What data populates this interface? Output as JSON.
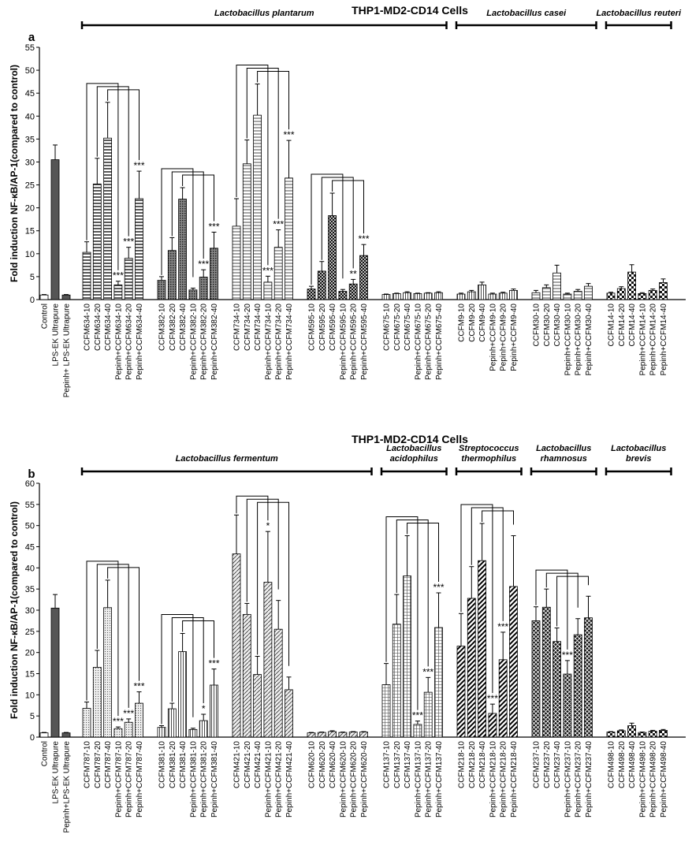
{
  "chart_data": [
    {
      "type": "bar",
      "title": "THP1-MD2-CD14 Cells",
      "panel": "a",
      "ylabel": "Fold induction NF-κB/AP-1(compared to control)",
      "ylim": [
        0,
        55
      ],
      "yticks": [
        0,
        5,
        10,
        15,
        20,
        25,
        30,
        35,
        40,
        45,
        50,
        55
      ],
      "groups": [
        {
          "sets": [
            {
              "pattern": "plain",
              "fills": [
                "#ffffff",
                "#555555",
                "#555555"
              ],
              "categories": [
                "Control",
                "LPS-EK Ultrapure",
                "Pepinh+ LPS-EK Ultrapure"
              ],
              "values": [
                1,
                30.5,
                1
              ],
              "errors": [
                0.1,
                3.2,
                0.1
              ],
              "stars": [
                null,
                null,
                null
              ]
            }
          ]
        },
        {
          "label": "Lactobacillus plantarum",
          "sets": [
            {
              "pattern": "hlines",
              "categories": [
                "CCFM634-10",
                "CCFM634-20",
                "CCFM634-40",
                "Pepinh+CCFM634-10",
                "Pepinh+CCFM634-20",
                "Pepinh+CCFM634-40"
              ],
              "values": [
                10.3,
                25.2,
                35.2,
                3.2,
                9,
                22
              ],
              "errors": [
                2.3,
                5.6,
                7.8,
                0.8,
                2.4,
                6
              ],
              "stars": [
                null,
                null,
                null,
                "***",
                "***",
                "***"
              ]
            },
            {
              "pattern": "dense",
              "categories": [
                "CCFM382-10",
                "CCFM382-20",
                "CCFM382-40",
                "Pepinh+CCFM382-10",
                "Pepinh+CCFM382-20",
                "Pepinh+CCFM382-40"
              ],
              "values": [
                4.2,
                10.7,
                21.9,
                2.1,
                4.9,
                11.2
              ],
              "errors": [
                0.8,
                2.8,
                2.5,
                0.4,
                1.6,
                3.5
              ],
              "stars": [
                null,
                null,
                null,
                null,
                "***",
                "***"
              ]
            },
            {
              "pattern": "hlines2",
              "categories": [
                "CCFM734-10",
                "CCFM734-20",
                "CCFM734-40",
                "Pepinh+CCFM734-10",
                "Pepinh+CCFM734-20",
                "Pepinh+CCFM734-40"
              ],
              "values": [
                16,
                29.6,
                40.2,
                3.8,
                11.4,
                26.5
              ],
              "errors": [
                6,
                5.2,
                6.8,
                1.3,
                3.8,
                8.2
              ],
              "stars": [
                null,
                null,
                null,
                "***",
                "***",
                "***"
              ]
            },
            {
              "pattern": "check",
              "categories": [
                "CCFM595-10",
                "CCFM595-20",
                "CCFM595-40",
                "Pepinh+CCFM595-10",
                "Pepinh+CCFM595-20",
                "Pepinh+CCFM595-40"
              ],
              "values": [
                2.3,
                6.2,
                18.3,
                1.8,
                3.4,
                9.6
              ],
              "errors": [
                0.6,
                2.1,
                4.9,
                0.4,
                1,
                2.4
              ],
              "stars": [
                null,
                null,
                null,
                null,
                "**",
                "***"
              ]
            },
            {
              "pattern": "vlines",
              "categories": [
                "CCFM675-10",
                "CCFM675-20",
                "CCFM675-40",
                "Pepinh+CCFM675-10",
                "Pepinh+CCFM675-20",
                "Pepinh+CCFM675-40"
              ],
              "values": [
                1.1,
                1.3,
                1.5,
                1.3,
                1.4,
                1.5
              ],
              "errors": [
                0.1,
                0.1,
                0.2,
                0.1,
                0.1,
                0.2
              ],
              "stars": [
                null,
                null,
                null,
                null,
                null,
                null
              ]
            }
          ]
        },
        {
          "label": "Lactobacillus casei",
          "sets": [
            {
              "pattern": "vlines",
              "categories": [
                "CCFM9-10",
                "CCFM9-20",
                "CCFM9-40",
                "Pepinh+CCFM9-10",
                "Pepinh+CCFM9-20",
                "Pepinh+CCFM9-40"
              ],
              "values": [
                1.2,
                1.7,
                3.2,
                1.2,
                1.4,
                2
              ],
              "errors": [
                0.2,
                0.3,
                0.6,
                0.2,
                0.2,
                0.3
              ],
              "stars": [
                null,
                null,
                null,
                null,
                null,
                null
              ]
            },
            {
              "pattern": "hlines2",
              "categories": [
                "CCFM30-10",
                "CCFM30-20",
                "CCFM30-40",
                "Pepinh+CCFM30-10",
                "Pepinh+CCFM30-20",
                "Pepinh+CCFM30-40"
              ],
              "values": [
                1.5,
                2.6,
                5.8,
                1.2,
                1.8,
                2.9
              ],
              "errors": [
                0.5,
                0.6,
                1.7,
                0.2,
                0.4,
                0.6
              ],
              "stars": [
                null,
                null,
                null,
                null,
                null,
                null
              ]
            }
          ]
        },
        {
          "label": "Lactobacillus reuteri",
          "sets": [
            {
              "pattern": "checker",
              "categories": [
                "CCFM14-10",
                "CCFM14-20",
                "CCFM14-40",
                "Pepinh+CCFM14-10",
                "Pepinh+CCFM14-20",
                "Pepinh+CCFM14-40"
              ],
              "values": [
                1.4,
                2.4,
                6,
                1.3,
                2,
                3.7
              ],
              "errors": [
                0.2,
                0.4,
                1.6,
                0.2,
                0.3,
                0.8
              ],
              "stars": [
                null,
                null,
                null,
                null,
                null,
                null
              ]
            }
          ]
        }
      ]
    },
    {
      "type": "bar",
      "title": "THP1-MD2-CD14 Cells",
      "panel": "b",
      "ylabel": "Fold induction NF-κB/AP-1(compared to control)",
      "ylim": [
        0,
        60
      ],
      "yticks": [
        0,
        5,
        10,
        15,
        20,
        25,
        30,
        35,
        40,
        45,
        50,
        55,
        60
      ],
      "groups": [
        {
          "sets": [
            {
              "pattern": "plain",
              "fills": [
                "#ffffff",
                "#555555",
                "#555555"
              ],
              "categories": [
                "Control",
                "LPS-EK Ultrapure",
                "Pepinh+LPS-EK Ultrapure"
              ],
              "values": [
                1,
                30.5,
                1
              ],
              "errors": [
                0.1,
                3.2,
                0.1
              ],
              "stars": [
                null,
                null,
                null
              ]
            }
          ]
        },
        {
          "label": [
            "Lactobacillus fermentum"
          ],
          "sets": [
            {
              "pattern": "dots",
              "categories": [
                "CCFM787-10",
                "CCFM787-20",
                "CCFM787-40",
                "Pepinh+CCFM787-10",
                "Pepinh+CCFM787-20",
                "Pepinh+CCFM787-40"
              ],
              "values": [
                6.8,
                16.5,
                30.6,
                2,
                3.5,
                8
              ],
              "errors": [
                1.5,
                4,
                6.5,
                0.4,
                0.8,
                2.7
              ],
              "stars": [
                null,
                null,
                null,
                "***",
                "***",
                "***"
              ]
            },
            {
              "pattern": "vlines",
              "categories": [
                "CCFM381-10",
                "CCFM381-20",
                "CCFM381-40",
                "Pepinh+CCFM381-10",
                "Pepinh+CCFM381-20",
                "Pepinh+CCFM381-40"
              ],
              "values": [
                2.3,
                6.7,
                20.2,
                1.8,
                3.9,
                12.3
              ],
              "errors": [
                0.4,
                1.3,
                4.3,
                0.3,
                1.5,
                3.8
              ],
              "stars": [
                null,
                null,
                null,
                null,
                "*",
                "***"
              ]
            },
            {
              "pattern": "diag",
              "categories": [
                "CCFM421-10",
                "CCFM421-20",
                "CCFM421-40",
                "Pepinh+CCFM421-10",
                "Pepinh+CCFM421-20",
                "Pepinh+CCFM421-40"
              ],
              "values": [
                43.3,
                29,
                14.8,
                36.6,
                25.5,
                11.2
              ],
              "errors": [
                9.2,
                2.6,
                4.3,
                12,
                6.8,
                3
              ],
              "stars": [
                null,
                null,
                null,
                "*",
                null,
                null
              ]
            },
            {
              "pattern": "diag",
              "categories": [
                "CCFM620-10",
                "CCFM620-20",
                "CCFM620-40",
                "Pepinh+CCFM620-10",
                "Pepinh+CCFM620-20",
                "Pepinh+CCFM620-40"
              ],
              "values": [
                1,
                1.1,
                1.3,
                1.1,
                1.2,
                1.2
              ],
              "errors": [
                0.1,
                0.1,
                0.2,
                0.1,
                0.1,
                0.1
              ],
              "stars": [
                null,
                null,
                null,
                null,
                null,
                null
              ]
            }
          ]
        },
        {
          "label": [
            "Lactobacillus",
            "acidophilus"
          ],
          "sets": [
            {
              "pattern": "grid",
              "categories": [
                "CCFM137-10",
                "CCFM137-20",
                "CCFM137-40",
                "Pepinh+CCFM137-10",
                "Pepinh+CCFM137-20",
                "Pepinh+CCFM137-40"
              ],
              "values": [
                12.4,
                26.7,
                38.1,
                3,
                10.6,
                25.9
              ],
              "errors": [
                5,
                7,
                9.5,
                0.8,
                3.5,
                8.2
              ],
              "stars": [
                null,
                null,
                null,
                "***",
                "***",
                "***"
              ]
            }
          ]
        },
        {
          "label": [
            "Streptococcus",
            "thermophilus"
          ],
          "sets": [
            {
              "pattern": "diagthick",
              "categories": [
                "CCFM218-10",
                "CCFM218-20",
                "CCFM218-40",
                "Pepinh+CCFM218-10",
                "Pepinh+CCFM218-20",
                "Pepinh+CCFM218-40"
              ],
              "values": [
                21.5,
                32.8,
                41.7,
                5.6,
                18.3,
                35.6
              ],
              "errors": [
                7.7,
                7.5,
                8.8,
                2.2,
                6.5,
                12
              ],
              "stars": [
                null,
                null,
                null,
                "***",
                "***",
                null
              ]
            }
          ]
        },
        {
          "label": [
            "Lactobacillus",
            "rhamnosus"
          ],
          "sets": [
            {
              "pattern": "cross",
              "categories": [
                "CCFM237-10",
                "CCFM237-20",
                "CCFM237-40",
                "Pepinh+CCFM237-10",
                "Pepinh+CCFM237-20",
                "Pepinh+CCFM237-40"
              ],
              "values": [
                27.5,
                30.7,
                22.6,
                14.9,
                24.2,
                28.2
              ],
              "errors": [
                3.3,
                4.3,
                3.2,
                3.2,
                3.8,
                5.1
              ],
              "stars": [
                null,
                null,
                null,
                "***",
                null,
                null
              ]
            }
          ]
        },
        {
          "label": [
            "Lactobacillus",
            "brevis"
          ],
          "sets": [
            {
              "pattern": "checker",
              "categories": [
                "CCFM498-10",
                "CCFM498-20",
                "CCFM498-40",
                "Pepinh+CCFM498-10",
                "Pepinh+CCFM498-20",
                "Pepinh+CCFM498-40"
              ],
              "values": [
                1.2,
                1.5,
                2.7,
                1.1,
                1.4,
                1.6
              ],
              "errors": [
                0.1,
                0.2,
                0.6,
                0.1,
                0.2,
                0.2
              ],
              "stars": [
                null,
                null,
                null,
                null,
                null,
                null
              ]
            }
          ]
        }
      ]
    }
  ]
}
